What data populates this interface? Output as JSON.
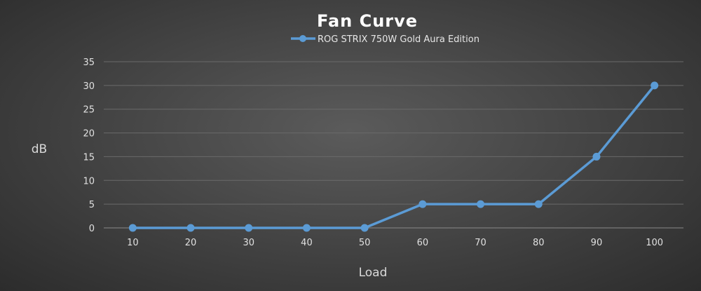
{
  "chart_data": {
    "type": "line",
    "title": "Fan Curve",
    "xlabel": "Load",
    "ylabel": "dB",
    "categories": [
      "10",
      "20",
      "30",
      "40",
      "50",
      "60",
      "70",
      "80",
      "90",
      "100"
    ],
    "series": [
      {
        "name": "ROG STRIX 750W Gold Aura Edition",
        "values": [
          0,
          0,
          0,
          0,
          0,
          5,
          5,
          5,
          15,
          30
        ],
        "color": "#5b9bd5"
      }
    ],
    "ylim": [
      0,
      35
    ],
    "yticks": [
      0,
      5,
      10,
      15,
      20,
      25,
      30,
      35
    ],
    "grid": true,
    "legend": "top-center"
  }
}
